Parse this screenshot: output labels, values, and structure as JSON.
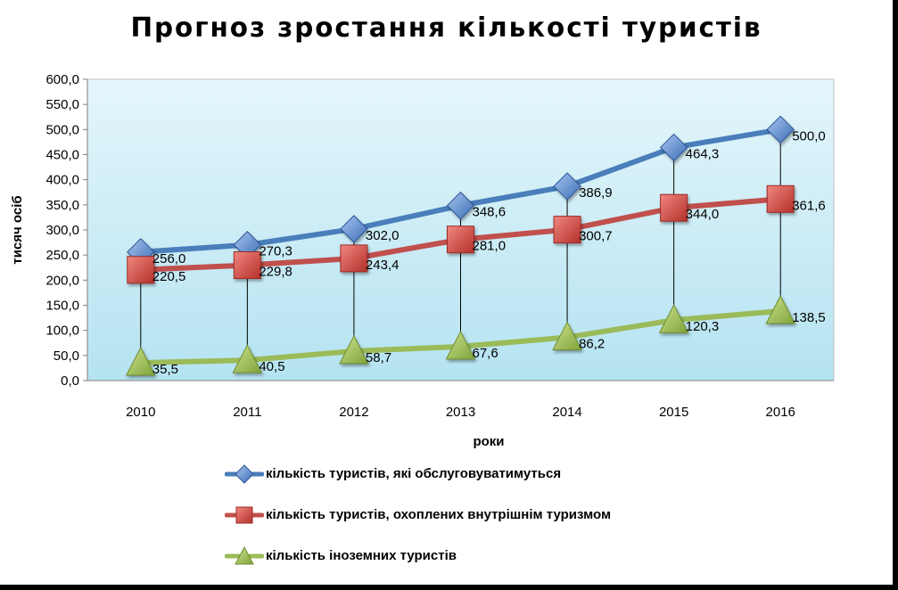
{
  "chart_data": {
    "type": "line",
    "title": "Прогноз зростання кількості туристів",
    "xlabel": "роки",
    "ylabel": "тисяч осіб",
    "categories": [
      "2010",
      "2011",
      "2012",
      "2013",
      "2014",
      "2015",
      "2016"
    ],
    "ylim": [
      0,
      600
    ],
    "ytick_step": 50,
    "grid": false,
    "drop_lines": true,
    "legend_position": "bottom",
    "series": [
      {
        "name": "кількість туристів, які обслуговуватимуться",
        "marker": "diamond",
        "color": "#4a7ebb",
        "values": [
          256.0,
          270.3,
          302.0,
          348.6,
          386.9,
          464.3,
          500.0
        ],
        "labels": [
          "256,0",
          "270,3",
          "302,0",
          "348,6",
          "386,9",
          "464,3",
          "500,0"
        ]
      },
      {
        "name": "кількість туристів, охоплених внутрішнім туризмом",
        "marker": "square",
        "color": "#c0504d",
        "values": [
          220.5,
          229.8,
          243.4,
          281.0,
          300.7,
          344.0,
          361.6
        ],
        "labels": [
          "220,5",
          "229,8",
          "243,4",
          "281,0",
          "300,7",
          "344,0",
          "361,6"
        ]
      },
      {
        "name": "кількість іноземних туристів",
        "marker": "triangle",
        "color": "#9bbb59",
        "values": [
          35.5,
          40.5,
          58.7,
          67.6,
          86.2,
          120.3,
          138.5
        ],
        "labels": [
          "35,5",
          "40,5",
          "58,7",
          "67,6",
          "86,2",
          "120,3",
          "138,5"
        ]
      }
    ],
    "ytick_labels": [
      "0,0",
      "50,0",
      "100,0",
      "150,0",
      "200,0",
      "250,0",
      "300,0",
      "350,0",
      "400,0",
      "450,0",
      "500,0",
      "550,0",
      "600,0"
    ]
  }
}
